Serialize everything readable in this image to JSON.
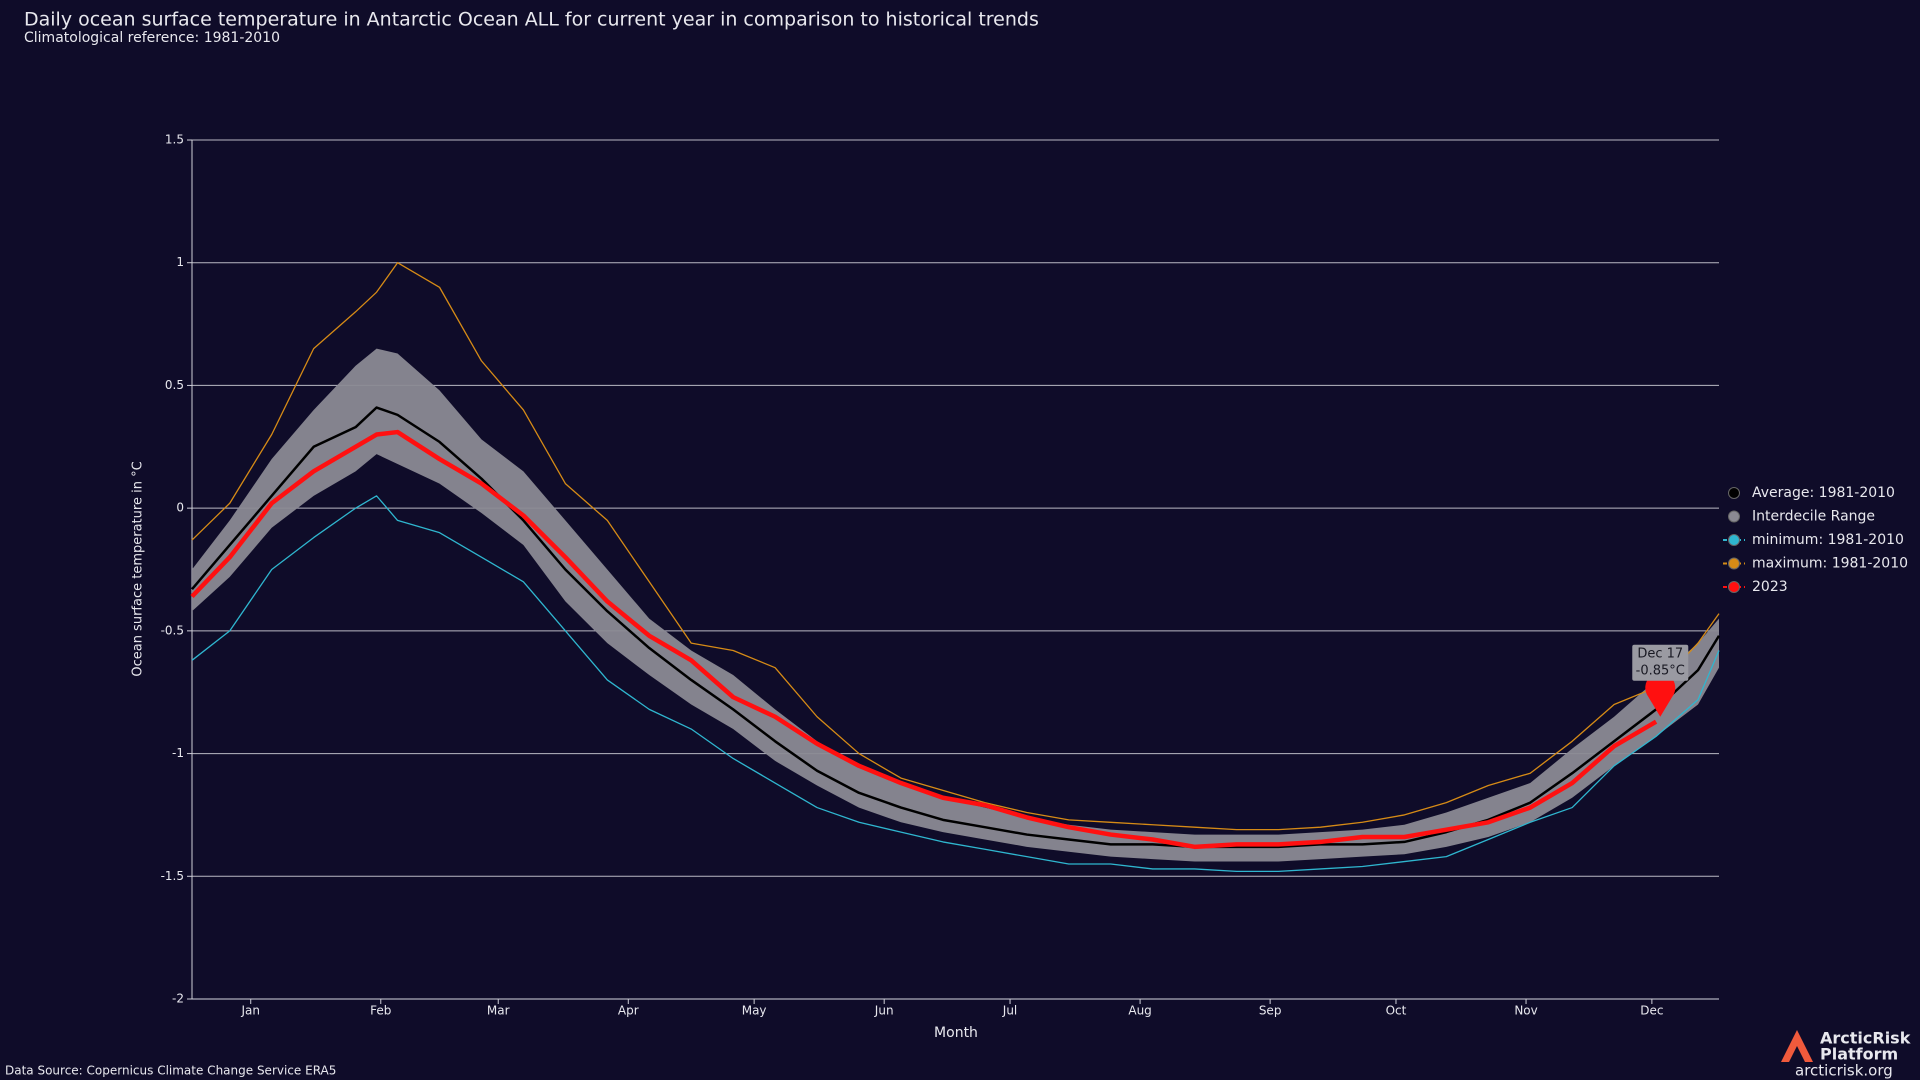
{
  "chart_data": {
    "type": "line",
    "title": "Daily ocean surface temperature in Antarctic Ocean ALL for current year in comparison to historical trends",
    "subtitle": "Climatological reference: 1981-2010",
    "x_label": "Month",
    "y_label": "Ocean surface temperature in °C",
    "source": "Data Source: Copernicus Climate Change Service ERA5",
    "brand": [
      "ArcticRisk",
      "Platform",
      "arcticrisk.org"
    ],
    "xlim": [
      1,
      365
    ],
    "ylim": [
      -2,
      1.5
    ],
    "yticks": [
      1.5,
      1,
      0.5,
      0,
      -0.5,
      -1,
      -1.5,
      -2
    ],
    "xticks": [
      {
        "value": 15,
        "label": "Jan"
      },
      {
        "value": 46,
        "label": "Feb"
      },
      {
        "value": 74,
        "label": "Mar"
      },
      {
        "value": 105,
        "label": "Apr"
      },
      {
        "value": 135,
        "label": "May"
      },
      {
        "value": 166,
        "label": "Jun"
      },
      {
        "value": 196,
        "label": "Jul"
      },
      {
        "value": 227,
        "label": "Aug"
      },
      {
        "value": 258,
        "label": "Sep"
      },
      {
        "value": 288,
        "label": "Oct"
      },
      {
        "value": 319,
        "label": "Nov"
      },
      {
        "value": 349,
        "label": "Dec"
      }
    ],
    "grid": true,
    "legend": "right",
    "x": [
      1,
      10,
      20,
      30,
      40,
      45,
      50,
      60,
      70,
      80,
      90,
      100,
      110,
      120,
      130,
      140,
      150,
      160,
      170,
      180,
      190,
      200,
      210,
      220,
      230,
      240,
      250,
      260,
      270,
      280,
      290,
      300,
      310,
      320,
      330,
      340,
      350,
      360,
      365
    ],
    "band": {
      "name": "Interdecile Range",
      "color": "#8b8a93",
      "upper": [
        -0.25,
        -0.05,
        0.2,
        0.4,
        0.58,
        0.65,
        0.63,
        0.48,
        0.28,
        0.15,
        -0.05,
        -0.25,
        -0.45,
        -0.58,
        -0.68,
        -0.82,
        -0.95,
        -1.05,
        -1.12,
        -1.18,
        -1.22,
        -1.26,
        -1.29,
        -1.31,
        -1.32,
        -1.33,
        -1.33,
        -1.33,
        -1.32,
        -1.31,
        -1.29,
        -1.24,
        -1.18,
        -1.12,
        -0.98,
        -0.85,
        -0.7,
        -0.55,
        -0.45
      ],
      "lower": [
        -0.42,
        -0.28,
        -0.08,
        0.05,
        0.15,
        0.22,
        0.18,
        0.1,
        -0.02,
        -0.15,
        -0.38,
        -0.55,
        -0.68,
        -0.8,
        -0.9,
        -1.03,
        -1.13,
        -1.22,
        -1.28,
        -1.32,
        -1.35,
        -1.38,
        -1.4,
        -1.42,
        -1.43,
        -1.44,
        -1.44,
        -1.44,
        -1.43,
        -1.42,
        -1.41,
        -1.38,
        -1.34,
        -1.28,
        -1.18,
        -1.05,
        -0.93,
        -0.8,
        -0.65
      ]
    },
    "series": [
      {
        "name": "Average: 1981-2010",
        "color": "#000000",
        "values": [
          -0.33,
          -0.15,
          0.05,
          0.25,
          0.33,
          0.41,
          0.38,
          0.27,
          0.12,
          -0.05,
          -0.25,
          -0.42,
          -0.57,
          -0.7,
          -0.82,
          -0.95,
          -1.07,
          -1.16,
          -1.22,
          -1.27,
          -1.3,
          -1.33,
          -1.35,
          -1.37,
          -1.37,
          -1.38,
          -1.38,
          -1.38,
          -1.37,
          -1.37,
          -1.36,
          -1.32,
          -1.27,
          -1.2,
          -1.08,
          -0.95,
          -0.82,
          -0.66,
          -0.52
        ]
      },
      {
        "name": "minimum: 1981-2010",
        "color": "#2fb6cf",
        "values": [
          -0.62,
          -0.5,
          -0.25,
          -0.12,
          0.0,
          0.05,
          -0.05,
          -0.1,
          -0.2,
          -0.3,
          -0.5,
          -0.7,
          -0.82,
          -0.9,
          -1.02,
          -1.12,
          -1.22,
          -1.28,
          -1.32,
          -1.36,
          -1.39,
          -1.42,
          -1.45,
          -1.45,
          -1.47,
          -1.47,
          -1.48,
          -1.48,
          -1.47,
          -1.46,
          -1.44,
          -1.42,
          -1.35,
          -1.28,
          -1.22,
          -1.05,
          -0.93,
          -0.78,
          -0.58
        ]
      },
      {
        "name": "maximum: 1981-2010",
        "color": "#d68b16",
        "values": [
          -0.13,
          0.02,
          0.3,
          0.65,
          0.8,
          0.88,
          1.0,
          0.9,
          0.6,
          0.4,
          0.1,
          -0.05,
          -0.3,
          -0.55,
          -0.58,
          -0.65,
          -0.85,
          -1.0,
          -1.1,
          -1.15,
          -1.2,
          -1.24,
          -1.27,
          -1.28,
          -1.29,
          -1.3,
          -1.31,
          -1.31,
          -1.3,
          -1.28,
          -1.25,
          -1.2,
          -1.13,
          -1.08,
          -0.95,
          -0.8,
          -0.73,
          -0.55,
          -0.43
        ]
      },
      {
        "name": "2023",
        "color": "#ff1010",
        "values": [
          -0.36,
          -0.2,
          0.02,
          0.15,
          0.25,
          0.3,
          0.31,
          0.2,
          0.1,
          -0.03,
          -0.2,
          -0.38,
          -0.52,
          -0.62,
          -0.77,
          -0.85,
          -0.96,
          -1.05,
          -1.12,
          -1.18,
          -1.21,
          -1.26,
          -1.3,
          -1.33,
          -1.35,
          -1.38,
          -1.37,
          -1.37,
          -1.36,
          -1.34,
          -1.34,
          -1.31,
          -1.28,
          -1.22,
          -1.12,
          -0.97,
          -0.87,
          null,
          null
        ]
      }
    ],
    "annotation": {
      "x": 351,
      "value": -0.85,
      "date": "Dec 17",
      "label": "-0.85°C"
    }
  }
}
